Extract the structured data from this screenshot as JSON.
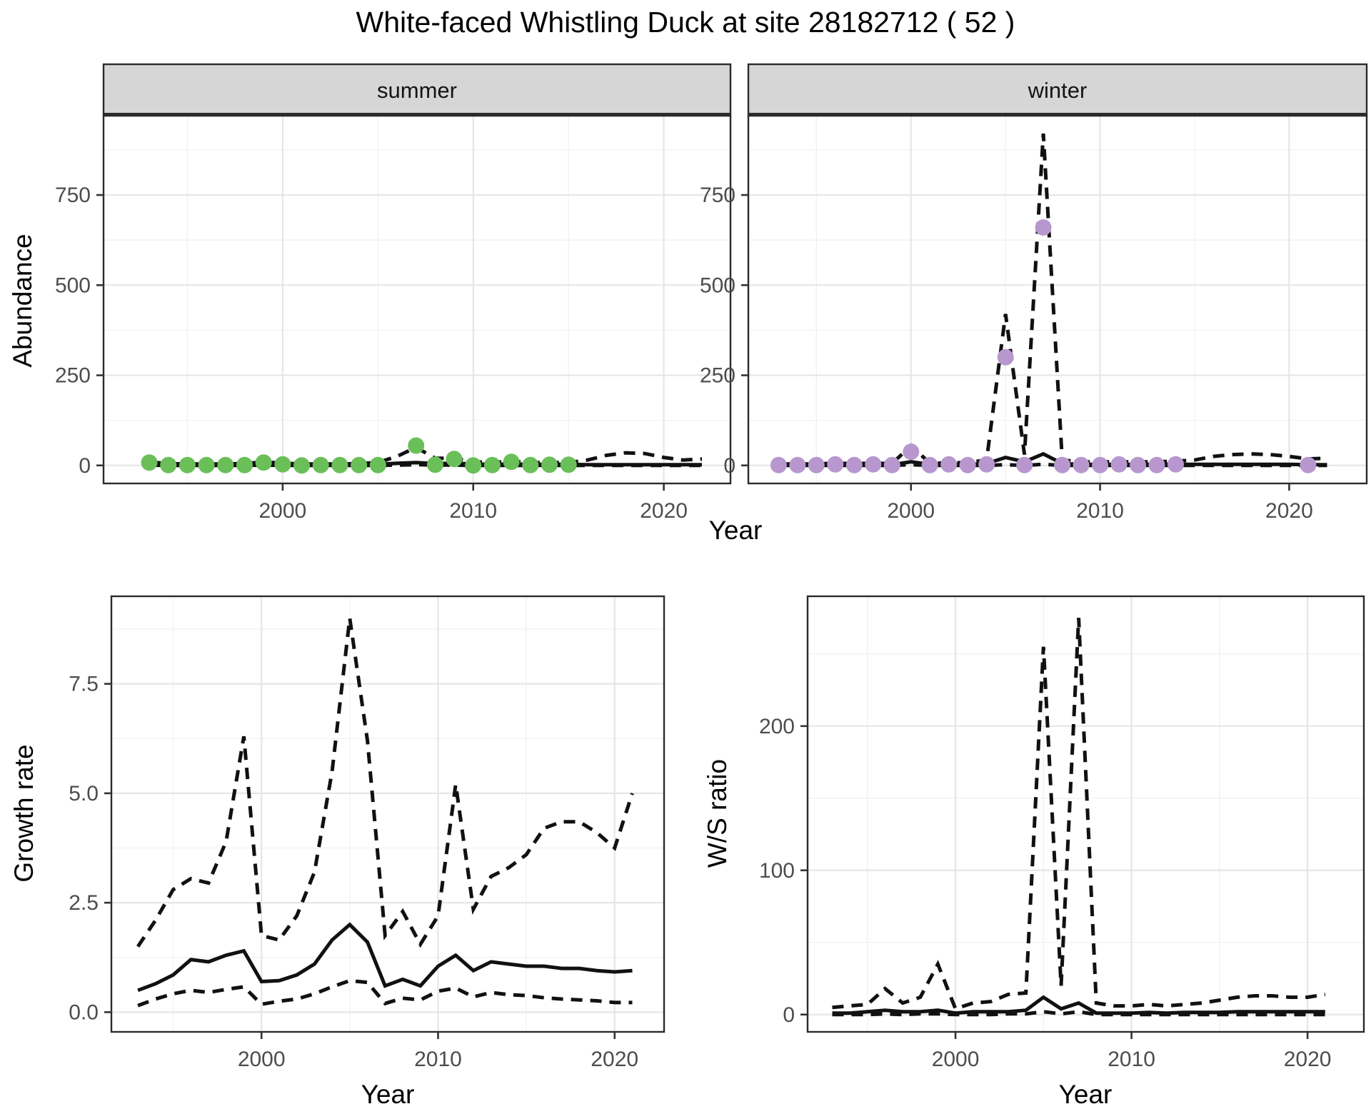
{
  "title": "White-faced Whistling Duck at site 28182712 ( 52 )",
  "labels": {
    "abundance_ylabel": "Abundance",
    "top_xlabel": "Year",
    "growth_ylabel": "Growth rate",
    "growth_xlabel": "Year",
    "ws_ylabel": "W/S ratio",
    "ws_xlabel": "Year"
  },
  "colors": {
    "summer_point": "#6abf59",
    "winter_point": "#b897cf",
    "line": "#111111",
    "strip_bg": "#d6d6d6",
    "panel_border": "#2b2b2b",
    "grid_major": "#e6e6e6",
    "grid_minor": "#f1f1f1",
    "tick_text": "#4d4d4d"
  },
  "chart_data": [
    {
      "id": "abundance-summer",
      "type": "line",
      "facet_label": "summer",
      "ylabel": "Abundance",
      "xlabel": "Year",
      "xlim": [
        1990.6,
        2023.5
      ],
      "ylim": [
        -50,
        970
      ],
      "xticks": [
        2000,
        2010,
        2020
      ],
      "xtick_labels": [
        "2000",
        "2010",
        "2020"
      ],
      "xminor": [
        1995,
        2005,
        2015
      ],
      "yticks": [
        0,
        250,
        500,
        750
      ],
      "ytick_labels": [
        "0",
        "250",
        "500",
        "750"
      ],
      "yminor": [
        125,
        375,
        625,
        875
      ],
      "x": [
        1993,
        1994,
        1995,
        1996,
        1997,
        1998,
        1999,
        2000,
        2001,
        2002,
        2003,
        2004,
        2005,
        2006,
        2007,
        2008,
        2009,
        2010,
        2011,
        2012,
        2013,
        2014,
        2015,
        2016,
        2017,
        2018,
        2019,
        2020,
        2021,
        2022
      ],
      "series": [
        {
          "name": "upper_ci",
          "style": "dashed",
          "values": [
            10,
            5,
            4,
            4,
            4,
            5,
            10,
            6,
            4,
            4,
            4,
            5,
            8,
            25,
            50,
            20,
            20,
            10,
            8,
            12,
            8,
            8,
            8,
            15,
            28,
            35,
            33,
            22,
            15,
            18
          ]
        },
        {
          "name": "median",
          "style": "solid",
          "values": [
            4,
            2,
            2,
            2,
            2,
            2,
            4,
            3,
            2,
            2,
            2,
            2,
            3,
            6,
            8,
            5,
            6,
            4,
            3,
            4,
            3,
            3,
            3,
            2,
            2,
            2,
            2,
            2,
            2,
            2
          ]
        },
        {
          "name": "lower_ci",
          "style": "dashed",
          "values": [
            1,
            0,
            0,
            0,
            0,
            0,
            1,
            0,
            0,
            0,
            0,
            0,
            0,
            1,
            2,
            1,
            1,
            0,
            0,
            0,
            0,
            0,
            0,
            0,
            0,
            0,
            0,
            0,
            0,
            0
          ]
        }
      ],
      "points": {
        "color_key": "summer_point",
        "x": [
          1993,
          1994,
          1995,
          1996,
          1997,
          1998,
          1999,
          2000,
          2001,
          2002,
          2003,
          2004,
          2005,
          2007,
          2008,
          2009,
          2010,
          2011,
          2012,
          2013,
          2014,
          2015
        ],
        "y": [
          8,
          1,
          1,
          1,
          1,
          1,
          8,
          3,
          0,
          1,
          1,
          1,
          1,
          55,
          2,
          18,
          0,
          1,
          10,
          1,
          2,
          2
        ]
      }
    },
    {
      "id": "abundance-winter",
      "type": "line",
      "facet_label": "winter",
      "ylabel": "Abundance",
      "xlabel": "Year",
      "xlim": [
        1991.4,
        2024.1
      ],
      "ylim": [
        -50,
        970
      ],
      "xticks": [
        2000,
        2010,
        2020
      ],
      "xtick_labels": [
        "2000",
        "2010",
        "2020"
      ],
      "xminor": [
        1995,
        2005,
        2015
      ],
      "yticks": [
        0,
        250,
        500,
        750
      ],
      "ytick_labels": [
        "0",
        "250",
        "500",
        "750"
      ],
      "yminor": [
        125,
        375,
        625,
        875
      ],
      "x": [
        1993,
        1994,
        1995,
        1996,
        1997,
        1998,
        1999,
        2000,
        2001,
        2002,
        2003,
        2004,
        2005,
        2006,
        2007,
        2008,
        2009,
        2010,
        2011,
        2012,
        2013,
        2014,
        2015,
        2016,
        2017,
        2018,
        2019,
        2020,
        2021,
        2022
      ],
      "series": [
        {
          "name": "upper_ci",
          "style": "dashed",
          "values": [
            4,
            4,
            4,
            6,
            5,
            6,
            5,
            55,
            6,
            7,
            8,
            15,
            420,
            30,
            920,
            15,
            10,
            10,
            10,
            10,
            10,
            12,
            15,
            25,
            30,
            32,
            30,
            25,
            18,
            20
          ]
        },
        {
          "name": "median",
          "style": "solid",
          "values": [
            2,
            2,
            2,
            3,
            2,
            3,
            2,
            10,
            3,
            3,
            3,
            5,
            22,
            10,
            32,
            5,
            3,
            3,
            3,
            3,
            3,
            3,
            3,
            3,
            3,
            3,
            3,
            3,
            2,
            2
          ]
        },
        {
          "name": "lower_ci",
          "style": "dashed",
          "values": [
            0,
            0,
            0,
            0,
            0,
            0,
            0,
            2,
            0,
            0,
            0,
            0,
            2,
            0,
            3,
            0,
            0,
            0,
            0,
            0,
            0,
            0,
            0,
            0,
            0,
            0,
            0,
            0,
            0,
            0
          ]
        }
      ],
      "points": {
        "color_key": "winter_point",
        "x": [
          1993,
          1994,
          1995,
          1996,
          1997,
          1998,
          1999,
          2000,
          2001,
          2002,
          2003,
          2004,
          2005,
          2006,
          2007,
          2008,
          2009,
          2010,
          2011,
          2012,
          2013,
          2014,
          2021
        ],
        "y": [
          1,
          1,
          1,
          3,
          1,
          3,
          1,
          38,
          1,
          3,
          1,
          3,
          300,
          1,
          660,
          1,
          1,
          1,
          3,
          1,
          1,
          3,
          1
        ]
      }
    },
    {
      "id": "growth-rate",
      "type": "line",
      "facet_label": null,
      "ylabel": "Growth rate",
      "xlabel": "Year",
      "xlim": [
        1991.5,
        2022.8
      ],
      "ylim": [
        -0.45,
        9.5
      ],
      "xticks": [
        2000,
        2010,
        2020
      ],
      "xtick_labels": [
        "2000",
        "2010",
        "2020"
      ],
      "xminor": [
        1995,
        2005,
        2015
      ],
      "yticks": [
        0,
        2.5,
        5,
        7.5
      ],
      "ytick_labels": [
        "0.0",
        "2.5",
        "5.0",
        "7.5"
      ],
      "yminor": [
        1.25,
        3.75,
        6.25,
        8.75
      ],
      "x": [
        1993,
        1994,
        1995,
        1996,
        1997,
        1998,
        1999,
        2000,
        2001,
        2002,
        2003,
        2004,
        2005,
        2006,
        2007,
        2008,
        2009,
        2010,
        2011,
        2012,
        2013,
        2014,
        2015,
        2016,
        2017,
        2018,
        2019,
        2020,
        2021
      ],
      "series": [
        {
          "name": "upper_ci",
          "style": "dashed",
          "values": [
            1.5,
            2.1,
            2.8,
            3.05,
            2.95,
            3.9,
            6.3,
            1.75,
            1.65,
            2.2,
            3.2,
            5.5,
            9.0,
            6.2,
            1.75,
            2.3,
            1.55,
            2.2,
            5.2,
            2.35,
            3.1,
            3.3,
            3.6,
            4.2,
            4.35,
            4.35,
            4.1,
            3.75,
            5.0
          ]
        },
        {
          "name": "median",
          "style": "solid",
          "values": [
            0.5,
            0.65,
            0.85,
            1.2,
            1.15,
            1.3,
            1.4,
            0.7,
            0.72,
            0.85,
            1.1,
            1.65,
            2.0,
            1.6,
            0.6,
            0.75,
            0.6,
            1.05,
            1.3,
            0.95,
            1.15,
            1.1,
            1.05,
            1.05,
            1.0,
            1.0,
            0.95,
            0.92,
            0.95
          ]
        },
        {
          "name": "lower_ci",
          "style": "dashed",
          "values": [
            0.15,
            0.3,
            0.42,
            0.5,
            0.45,
            0.52,
            0.58,
            0.18,
            0.25,
            0.3,
            0.42,
            0.58,
            0.72,
            0.68,
            0.2,
            0.32,
            0.28,
            0.48,
            0.55,
            0.35,
            0.45,
            0.4,
            0.38,
            0.33,
            0.3,
            0.28,
            0.26,
            0.22,
            0.22
          ]
        }
      ],
      "points": null
    },
    {
      "id": "ws-ratio",
      "type": "line",
      "facet_label": null,
      "ylabel": "W/S ratio",
      "xlabel": "Year",
      "xlim": [
        1991.6,
        2023.2
      ],
      "ylim": [
        -12,
        290
      ],
      "xticks": [
        2000,
        2010,
        2020
      ],
      "xtick_labels": [
        "2000",
        "2010",
        "2020"
      ],
      "xminor": [
        1995,
        2005,
        2015
      ],
      "yticks": [
        0,
        100,
        200
      ],
      "ytick_labels": [
        "0",
        "100",
        "200"
      ],
      "yminor": [
        50,
        150,
        250
      ],
      "x": [
        1993,
        1994,
        1995,
        1996,
        1997,
        1998,
        1999,
        2000,
        2001,
        2002,
        2003,
        2004,
        2005,
        2006,
        2007,
        2008,
        2009,
        2010,
        2011,
        2012,
        2013,
        2014,
        2015,
        2016,
        2017,
        2018,
        2019,
        2020,
        2021
      ],
      "series": [
        {
          "name": "upper_ci",
          "style": "dashed",
          "values": [
            5,
            6,
            7,
            18,
            8,
            12,
            35,
            4,
            8,
            9,
            14,
            15,
            255,
            20,
            275,
            8,
            6,
            6,
            7,
            6,
            7,
            8,
            10,
            12,
            13,
            13,
            12,
            12,
            14
          ]
        },
        {
          "name": "median",
          "style": "solid",
          "values": [
            1,
            1,
            2,
            3,
            2,
            2,
            3,
            1,
            2,
            2,
            2,
            3,
            12,
            4,
            8,
            1,
            1,
            1,
            1.5,
            1,
            1.5,
            1.5,
            1.5,
            2,
            2,
            2,
            2,
            2,
            2
          ]
        },
        {
          "name": "lower_ci",
          "style": "dashed",
          "values": [
            0,
            0,
            0,
            0.5,
            0,
            0.5,
            0.5,
            0,
            0,
            0,
            0.5,
            0.5,
            2,
            0.5,
            2,
            0,
            0,
            0,
            0,
            0,
            0,
            0,
            0,
            0,
            0,
            0,
            0,
            0,
            0
          ]
        }
      ],
      "points": null
    }
  ]
}
